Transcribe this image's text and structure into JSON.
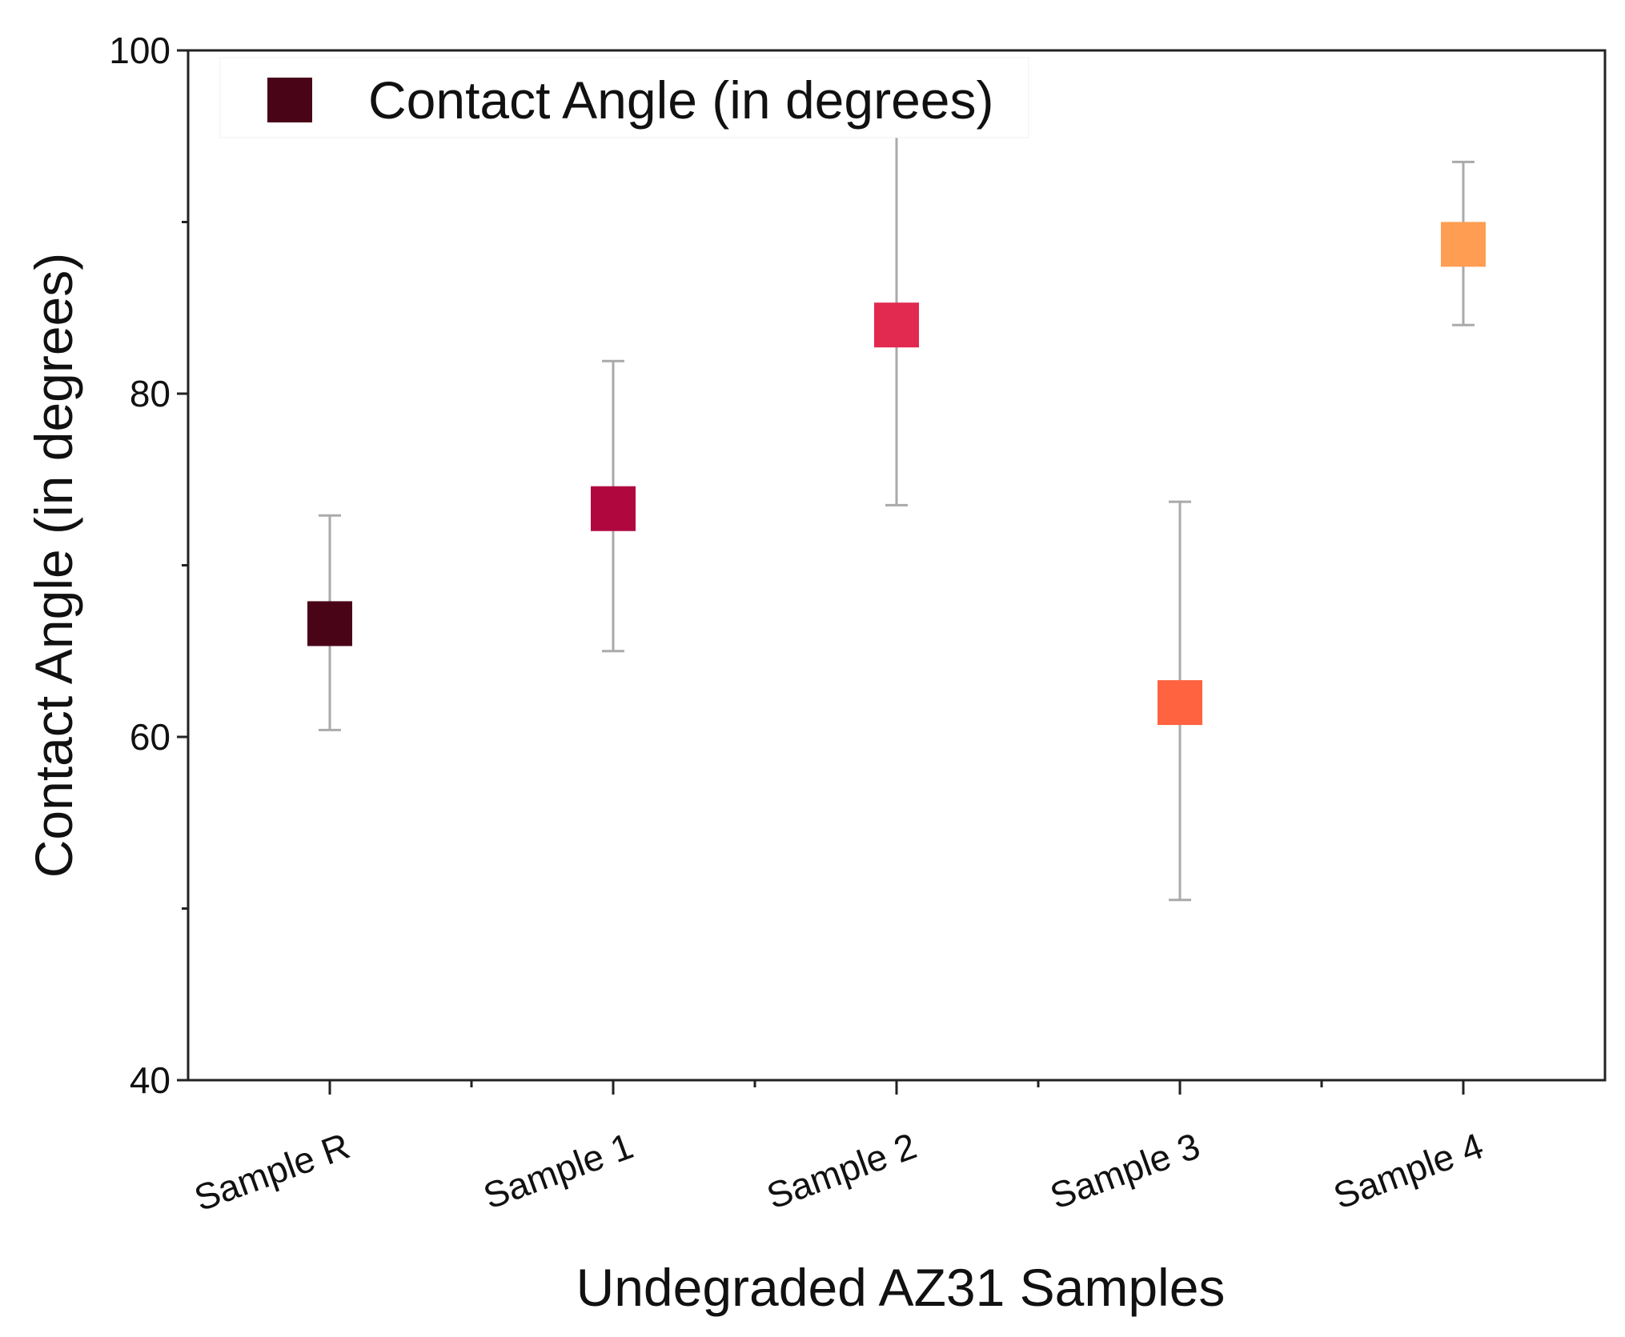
{
  "chart_data": {
    "type": "scatter",
    "title": "",
    "xlabel": "Undegraded AZ31 Samples",
    "ylabel": "Contact Angle (in degrees)",
    "ylim": [
      40,
      100
    ],
    "yticks": [
      40,
      60,
      80,
      100
    ],
    "categories": [
      "Sample R",
      "Sample 1",
      "Sample 2",
      "Sample 3",
      "Sample 4"
    ],
    "series": [
      {
        "name": "Contact Angle (in degrees)",
        "values": [
          66.6,
          73.3,
          84.0,
          62.0,
          88.7
        ],
        "error_low": [
          60.4,
          65.0,
          73.5,
          50.5,
          84.0
        ],
        "error_high": [
          72.9,
          81.9,
          95.0,
          73.7,
          93.5
        ],
        "colors": [
          "#4a0418",
          "#b0073f",
          "#e2294f",
          "#ff6340",
          "#ff9e52"
        ]
      }
    ],
    "legend": {
      "position": "top-left",
      "swatch_color": "#4a0418"
    },
    "error_bar_color": "#aaaaaa",
    "grid": false
  }
}
